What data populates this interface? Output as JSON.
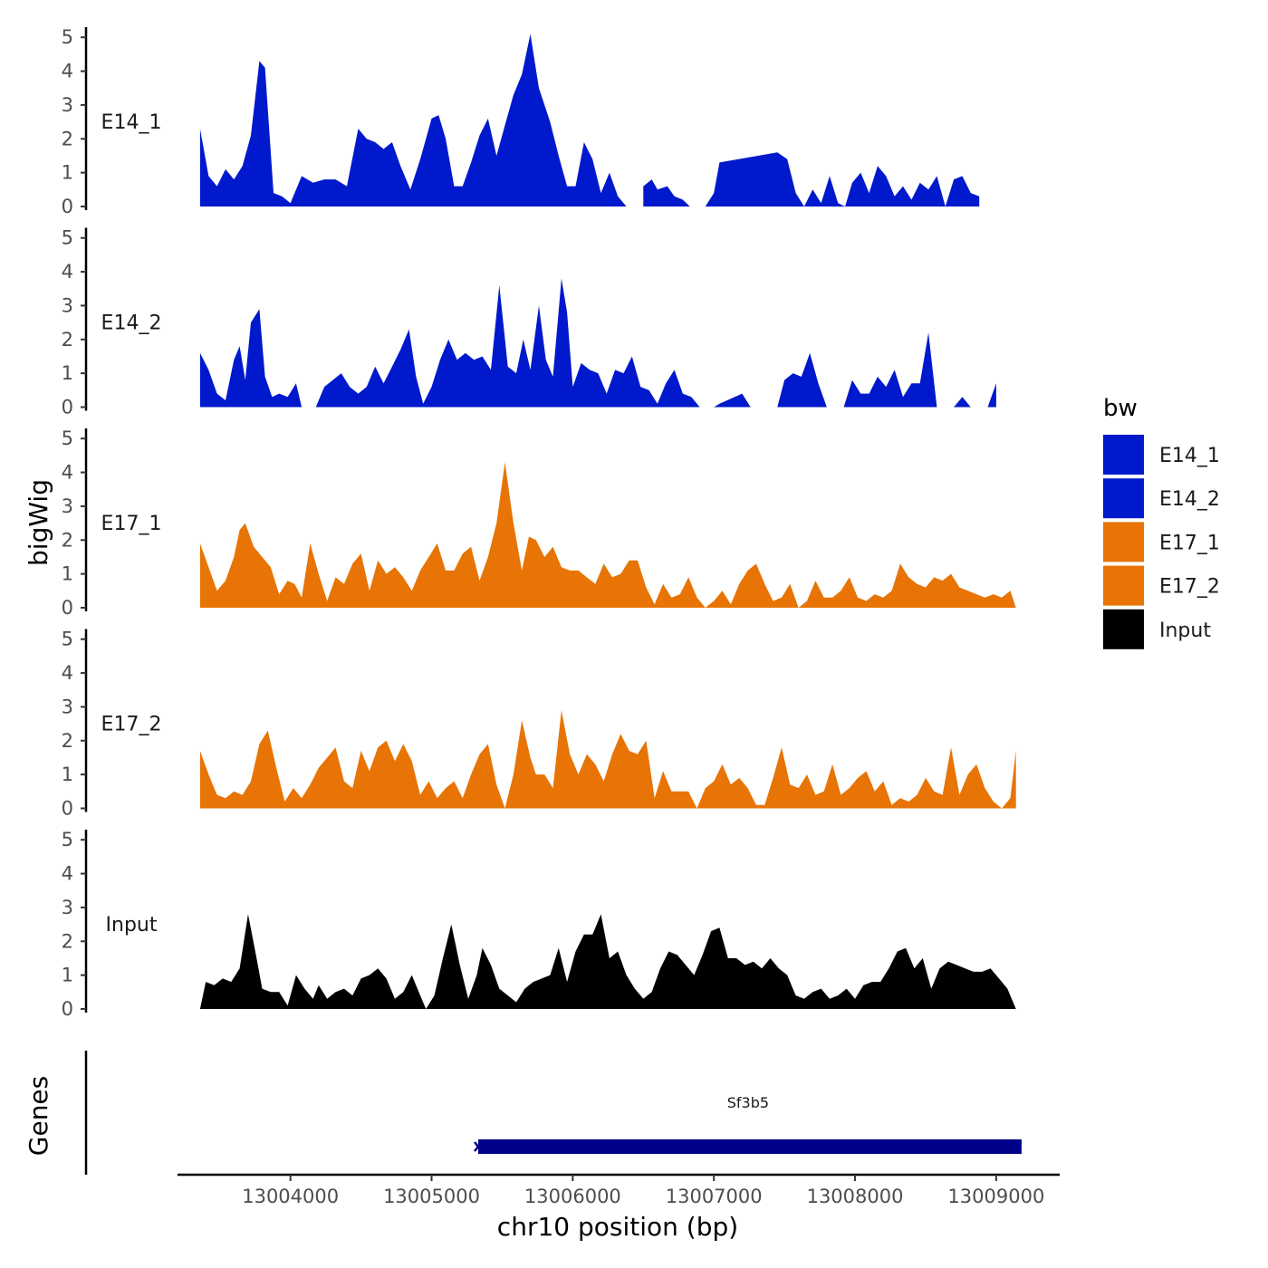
{
  "chart_data": {
    "type": "area",
    "ylabel": "bigWig",
    "xlabel": "chr10 position (bp)",
    "xlim": [
      13003200,
      13009450
    ],
    "ylim": [
      0,
      5.3
    ],
    "yticks": [
      0,
      1,
      2,
      3,
      4,
      5
    ],
    "xticks": [
      13004000,
      13005000,
      13006000,
      13007000,
      13008000,
      13009000
    ],
    "xtick_labels": [
      "13004000",
      "13005000",
      "13006000",
      "13007000",
      "13008000",
      "13009000"
    ],
    "legend": {
      "title": "bw",
      "position": "right",
      "entries": [
        {
          "label": "E14_1",
          "color": "#0019CC"
        },
        {
          "label": "E14_2",
          "color": "#0019CC"
        },
        {
          "label": "E17_1",
          "color": "#E77405"
        },
        {
          "label": "E17_2",
          "color": "#E77405"
        },
        {
          "label": "Input",
          "color": "#000000"
        }
      ]
    },
    "series": [
      {
        "name": "E14_1",
        "color": "#0019CC",
        "x": [
          13003360,
          13003420,
          13003480,
          13003540,
          13003600,
          13003660,
          13003720,
          13003780,
          13003820,
          13003880,
          13003940,
          13004000,
          13004080,
          13004160,
          13004240,
          13004320,
          13004400,
          13004480,
          13004540,
          13004600,
          13004660,
          13004720,
          13004780,
          13004850,
          13004920,
          13005000,
          13005050,
          13005100,
          13005160,
          13005220,
          13005280,
          13005340,
          13005400,
          13005460,
          13005520,
          13005580,
          13005640,
          13005700,
          13005760,
          13005800,
          13005840,
          13005900,
          13005960,
          13006020,
          13006080,
          13006140,
          13006200,
          13006260,
          13006320,
          13006380,
          13006440,
          13006500,
          13006560,
          13006600,
          13006670,
          13006720,
          13006780,
          13006830,
          13006880,
          13006940,
          13007000,
          13007040,
          13007450,
          13007520,
          13007580,
          13007640,
          13007700,
          13007760,
          13007820,
          13007880,
          13007930,
          13007980,
          13008040,
          13008100,
          13008160,
          13008220,
          13008280,
          13008340,
          13008400,
          13008460,
          13008520,
          13008580,
          13008640,
          13008700,
          13008760,
          13008820,
          13008880,
          13008940,
          13009000,
          13009060,
          13009110,
          13009140
        ],
        "y": [
          2.3,
          0.9,
          0.6,
          1.1,
          0.8,
          1.2,
          2.1,
          4.3,
          4.1,
          0.4,
          0.3,
          0.1,
          0.9,
          0.7,
          0.8,
          0.8,
          0.6,
          2.3,
          2.0,
          1.9,
          1.7,
          1.9,
          1.2,
          0.5,
          1.4,
          2.6,
          2.7,
          2.0,
          0.6,
          0.6,
          1.3,
          2.1,
          2.6,
          1.5,
          2.4,
          3.3,
          3.9,
          5.1,
          3.5,
          3.0,
          2.5,
          1.5,
          0.6,
          0.6,
          1.9,
          1.4,
          0.4,
          1.0,
          0.3,
          0.0,
          null,
          0.6,
          0.8,
          0.5,
          0.6,
          0.3,
          0.2,
          0.0,
          null,
          0.0,
          0.4,
          1.3,
          1.6,
          1.4,
          0.4,
          0.0,
          0.5,
          0.1,
          0.9,
          0.1,
          0.0,
          0.7,
          1.0,
          0.4,
          1.2,
          0.9,
          0.3,
          0.6,
          0.2,
          0.7,
          0.5,
          0.9,
          0.0,
          0.8,
          0.9,
          0.4,
          0.3,
          null,
          null,
          null,
          null,
          null
        ]
      },
      {
        "name": "E14_2",
        "color": "#0019CC",
        "x": [
          13003360,
          13003420,
          13003480,
          13003540,
          13003600,
          13003640,
          13003680,
          13003720,
          13003780,
          13003820,
          13003870,
          13003920,
          13003980,
          13004040,
          13004080,
          13004120,
          13004180,
          13004240,
          13004300,
          13004360,
          13004420,
          13004480,
          13004540,
          13004600,
          13004660,
          13004720,
          13004780,
          13004840,
          13004890,
          13004940,
          13005000,
          13005060,
          13005120,
          13005180,
          13005240,
          13005300,
          13005360,
          13005420,
          13005480,
          13005540,
          13005600,
          13005650,
          13005700,
          13005760,
          13005810,
          13005860,
          13005920,
          13005960,
          13006000,
          13006060,
          13006120,
          13006180,
          13006240,
          13006300,
          13006360,
          13006420,
          13006480,
          13006540,
          13006600,
          13006660,
          13006720,
          13006780,
          13006840,
          13006900,
          13006960,
          13007000,
          13007040,
          13007200,
          13007260,
          13007320,
          13007400,
          13007450,
          13007500,
          13007560,
          13007620,
          13007680,
          13007740,
          13007800,
          13007860,
          13007920,
          13007980,
          13008040,
          13008100,
          13008160,
          13008220,
          13008280,
          13008340,
          13008400,
          13008460,
          13008520,
          13008580,
          13008640,
          13008700,
          13008760,
          13008820,
          13008880,
          13008940,
          13009000,
          13009060,
          13009110,
          13009140
        ],
        "y": [
          1.6,
          1.1,
          0.4,
          0.2,
          1.4,
          1.8,
          0.8,
          2.5,
          2.9,
          0.9,
          0.3,
          0.4,
          0.3,
          0.7,
          0.0,
          null,
          0.0,
          0.6,
          0.8,
          1.0,
          0.6,
          0.4,
          0.6,
          1.2,
          0.7,
          1.2,
          1.7,
          2.3,
          0.9,
          0.1,
          0.6,
          1.4,
          2.0,
          1.4,
          1.6,
          1.4,
          1.5,
          1.1,
          3.6,
          1.2,
          1.0,
          2.0,
          1.1,
          3.0,
          1.4,
          0.9,
          3.8,
          2.8,
          0.6,
          1.3,
          1.1,
          1.0,
          0.4,
          1.1,
          1.0,
          1.5,
          0.6,
          0.5,
          0.1,
          0.7,
          1.1,
          0.4,
          0.3,
          0.0,
          null,
          0.0,
          0.1,
          0.4,
          0.0,
          0.0,
          null,
          0.0,
          0.8,
          1.0,
          0.9,
          1.6,
          0.7,
          0.0,
          null,
          0.0,
          0.8,
          0.4,
          0.4,
          0.9,
          0.6,
          1.1,
          0.3,
          0.7,
          0.7,
          2.2,
          0.0,
          null,
          0.0,
          0.3,
          0.0,
          null,
          0.0,
          0.7,
          null,
          null,
          null
        ]
      },
      {
        "name": "E17_1",
        "color": "#E77405",
        "x": [
          13003360,
          13003420,
          13003480,
          13003540,
          13003600,
          13003640,
          13003680,
          13003740,
          13003800,
          13003860,
          13003920,
          13003980,
          13004030,
          13004080,
          13004140,
          13004200,
          13004260,
          13004320,
          13004380,
          13004440,
          13004500,
          13004560,
          13004620,
          13004680,
          13004740,
          13004800,
          13004860,
          13004920,
          13004980,
          13005040,
          13005100,
          13005160,
          13005220,
          13005280,
          13005340,
          13005400,
          13005460,
          13005520,
          13005580,
          13005640,
          13005690,
          13005740,
          13005800,
          13005860,
          13005920,
          13005980,
          13006040,
          13006100,
          13006160,
          13006220,
          13006280,
          13006340,
          13006400,
          13006460,
          13006520,
          13006580,
          13006640,
          13006700,
          13006760,
          13006820,
          13006880,
          13006940,
          13007000,
          13007060,
          13007120,
          13007180,
          13007240,
          13007300,
          13007360,
          13007420,
          13007480,
          13007540,
          13007600,
          13007660,
          13007720,
          13007780,
          13007840,
          13007900,
          13007960,
          13008020,
          13008080,
          13008140,
          13008200,
          13008260,
          13008320,
          13008380,
          13008440,
          13008500,
          13008560,
          13008620,
          13008680,
          13008740,
          13008800,
          13008860,
          13008920,
          13008980,
          13009040,
          13009100,
          13009140
        ],
        "y": [
          1.9,
          1.2,
          0.5,
          0.8,
          1.5,
          2.3,
          2.5,
          1.8,
          1.5,
          1.2,
          0.4,
          0.8,
          0.7,
          0.3,
          1.9,
          1.0,
          0.2,
          0.9,
          0.7,
          1.3,
          1.6,
          0.5,
          1.4,
          1.0,
          1.2,
          0.9,
          0.5,
          1.1,
          1.5,
          1.9,
          1.1,
          1.1,
          1.6,
          1.8,
          0.8,
          1.5,
          2.5,
          4.3,
          2.5,
          1.1,
          2.1,
          2.0,
          1.5,
          1.8,
          1.2,
          1.1,
          1.1,
          0.9,
          0.7,
          1.3,
          0.9,
          1.0,
          1.4,
          1.4,
          0.6,
          0.1,
          0.7,
          0.3,
          0.4,
          0.9,
          0.3,
          0.0,
          0.2,
          0.5,
          0.1,
          0.7,
          1.1,
          1.3,
          0.7,
          0.2,
          0.3,
          0.7,
          0.0,
          0.2,
          0.8,
          0.3,
          0.3,
          0.5,
          0.9,
          0.3,
          0.2,
          0.4,
          0.3,
          0.5,
          1.3,
          0.9,
          0.7,
          0.6,
          0.9,
          0.8,
          1.0,
          0.6,
          0.5,
          0.4,
          0.3,
          0.4,
          0.3,
          0.5,
          0.0
        ]
      },
      {
        "name": "E17_2",
        "color": "#E77405",
        "x": [
          13003360,
          13003420,
          13003480,
          13003540,
          13003600,
          13003660,
          13003720,
          13003780,
          13003840,
          13003900,
          13003960,
          13004020,
          13004080,
          13004140,
          13004200,
          13004260,
          13004320,
          13004380,
          13004440,
          13004500,
          13004560,
          13004620,
          13004680,
          13004740,
          13004800,
          13004860,
          13004920,
          13004980,
          13005040,
          13005100,
          13005160,
          13005220,
          13005280,
          13005340,
          13005400,
          13005460,
          13005520,
          13005580,
          13005640,
          13005700,
          13005740,
          13005800,
          13005860,
          13005920,
          13005980,
          13006040,
          13006100,
          13006160,
          13006220,
          13006280,
          13006340,
          13006400,
          13006460,
          13006520,
          13006580,
          13006640,
          13006700,
          13006760,
          13006820,
          13006880,
          13006940,
          13007000,
          13007060,
          13007120,
          13007180,
          13007240,
          13007300,
          13007360,
          13007420,
          13007480,
          13007540,
          13007600,
          13007660,
          13007720,
          13007780,
          13007840,
          13007900,
          13007960,
          13008020,
          13008080,
          13008140,
          13008200,
          13008260,
          13008320,
          13008380,
          13008440,
          13008500,
          13008560,
          13008620,
          13008680,
          13008740,
          13008800,
          13008860,
          13008920,
          13008980,
          13009040,
          13009100,
          13009140
        ],
        "y": [
          1.7,
          1.0,
          0.4,
          0.3,
          0.5,
          0.4,
          0.8,
          1.9,
          2.3,
          1.2,
          0.2,
          0.6,
          0.3,
          0.7,
          1.2,
          1.5,
          1.8,
          0.8,
          0.6,
          1.7,
          1.1,
          1.8,
          2.0,
          1.4,
          1.9,
          1.4,
          0.4,
          0.8,
          0.3,
          0.6,
          0.8,
          0.3,
          1.0,
          1.6,
          1.9,
          0.7,
          0.0,
          1.0,
          2.6,
          1.5,
          1.0,
          1.0,
          0.6,
          2.9,
          1.6,
          1.0,
          1.6,
          1.3,
          0.8,
          1.6,
          2.2,
          1.7,
          1.6,
          2.0,
          0.3,
          1.1,
          0.5,
          0.5,
          0.5,
          0.0,
          0.6,
          0.8,
          1.3,
          0.7,
          0.9,
          0.6,
          0.1,
          0.1,
          0.9,
          1.8,
          0.7,
          0.6,
          1.0,
          0.4,
          0.5,
          1.3,
          0.4,
          0.6,
          0.9,
          1.1,
          0.5,
          0.8,
          0.1,
          0.3,
          0.2,
          0.4,
          0.9,
          0.5,
          0.4,
          1.8,
          0.4,
          1.0,
          1.3,
          0.6,
          0.2,
          0.0,
          0.3,
          1.7
        ]
      },
      {
        "name": "Input",
        "color": "#000000",
        "x": [
          13003360,
          13003400,
          13003460,
          13003520,
          13003580,
          13003640,
          13003700,
          13003760,
          13003800,
          13003860,
          13003920,
          13003980,
          13004040,
          13004100,
          13004160,
          13004200,
          13004260,
          13004320,
          13004380,
          13004440,
          13004500,
          13004560,
          13004620,
          13004680,
          13004740,
          13004800,
          13004860,
          13004920,
          13004960,
          13005020,
          13005080,
          13005140,
          13005200,
          13005260,
          13005320,
          13005360,
          13005420,
          13005480,
          13005540,
          13005600,
          13005660,
          13005720,
          13005780,
          13005840,
          13005900,
          13005960,
          13006020,
          13006080,
          13006140,
          13006200,
          13006260,
          13006320,
          13006380,
          13006440,
          13006500,
          13006560,
          13006620,
          13006680,
          13006740,
          13006800,
          13006860,
          13006920,
          13006980,
          13007040,
          13007100,
          13007160,
          13007220,
          13007280,
          13007340,
          13007400,
          13007460,
          13007520,
          13007580,
          13007640,
          13007700,
          13007760,
          13007820,
          13007880,
          13007940,
          13008000,
          13008060,
          13008120,
          13008180,
          13008240,
          13008300,
          13008360,
          13008420,
          13008480,
          13008540,
          13008600,
          13008660,
          13008720,
          13008780,
          13008840,
          13008900,
          13008960,
          13009020,
          13009080,
          13009140
        ],
        "y": [
          0.0,
          0.8,
          0.7,
          0.9,
          0.8,
          1.2,
          2.8,
          1.5,
          0.6,
          0.5,
          0.5,
          0.1,
          1.0,
          0.6,
          0.3,
          0.7,
          0.3,
          0.5,
          0.6,
          0.4,
          0.9,
          1.0,
          1.2,
          0.9,
          0.3,
          0.5,
          1.0,
          0.4,
          0.0,
          0.4,
          1.5,
          2.5,
          1.3,
          0.3,
          1.0,
          1.8,
          1.3,
          0.6,
          0.4,
          0.2,
          0.6,
          0.8,
          0.9,
          1.0,
          1.8,
          0.8,
          1.7,
          2.2,
          2.2,
          2.8,
          1.5,
          1.7,
          1.0,
          0.6,
          0.3,
          0.5,
          1.2,
          1.7,
          1.6,
          1.3,
          1.0,
          1.6,
          2.3,
          2.4,
          1.5,
          1.5,
          1.3,
          1.4,
          1.2,
          1.5,
          1.2,
          1.0,
          0.4,
          0.3,
          0.5,
          0.6,
          0.3,
          0.4,
          0.6,
          0.3,
          0.7,
          0.8,
          0.8,
          1.2,
          1.7,
          1.8,
          1.2,
          1.5,
          0.6,
          1.2,
          1.4,
          1.3,
          1.2,
          1.1,
          1.1,
          1.2,
          0.9,
          0.6,
          0.0
        ]
      }
    ],
    "genes_track": {
      "ylabel": "Genes",
      "genes": [
        {
          "name": "Sf3b5",
          "start": 13005330,
          "end": 13009180,
          "strand": "-",
          "color": "#00008B"
        }
      ]
    }
  }
}
